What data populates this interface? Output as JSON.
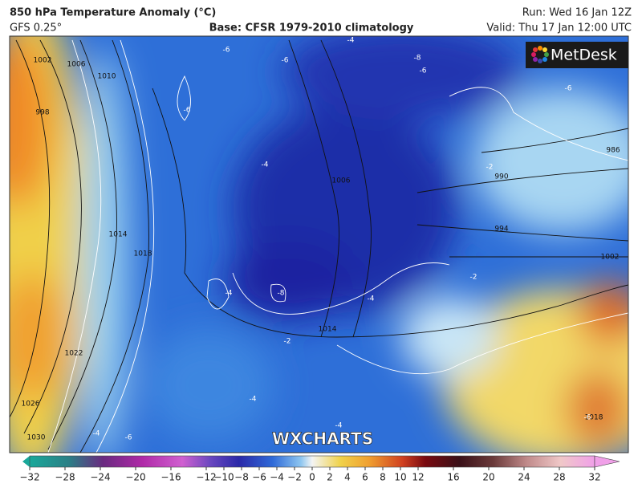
{
  "header": {
    "title": "850 hPa Temperature Anomaly (°C)",
    "model": "GFS 0.25°",
    "base": "Base: CFSR 1979-2010 climatology",
    "run": "Run: Wed 16 Jan 12Z",
    "valid": "Valid: Thu 17 Jan 12:00 UTC"
  },
  "logo": "MetDesk",
  "watermark": "WXCHARTS",
  "isobar_labels": [
    1002,
    1006,
    1010,
    998,
    1014,
    1018,
    1022,
    1026,
    1030,
    1006,
    1014,
    986,
    990,
    994,
    1002,
    1018
  ],
  "anomaly_labels": [
    -6,
    -6,
    -4,
    -8,
    -6,
    -6,
    -6,
    -4,
    -2,
    -4,
    -8,
    -4,
    -2,
    -2,
    -4,
    -6,
    -4,
    -4,
    -6
  ],
  "colorbar": {
    "range": [
      -32,
      32
    ],
    "ticks": [
      {
        "value": -32,
        "label": "−32"
      },
      {
        "value": -28,
        "label": "−28"
      },
      {
        "value": -24,
        "label": "−24"
      },
      {
        "value": -20,
        "label": "−20"
      },
      {
        "value": -16,
        "label": "−16"
      },
      {
        "value": -12,
        "label": "−12"
      },
      {
        "value": -10,
        "label": "−10"
      },
      {
        "value": -8,
        "label": "−8"
      },
      {
        "value": -6,
        "label": "−6"
      },
      {
        "value": -4,
        "label": "−4"
      },
      {
        "value": -2,
        "label": "−2"
      },
      0,
      2,
      4,
      6,
      8,
      10,
      12,
      16,
      20,
      24,
      28,
      32
    ]
  }
}
